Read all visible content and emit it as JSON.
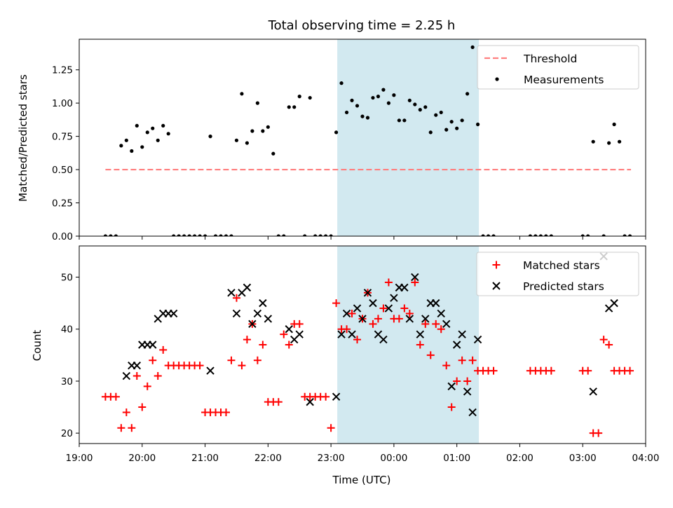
{
  "chart_data": [
    {
      "type": "scatter",
      "title": "Total observing time = 2.25 h",
      "xlabel": "",
      "ylabel": "Matched/Predicted stars",
      "xlim": [
        "19:00",
        "04:00"
      ],
      "ylim": [
        0,
        1.48
      ],
      "yticks": [
        "0.00",
        "0.25",
        "0.50",
        "0.75",
        "1.00",
        "1.25"
      ],
      "shaded_region": {
        "start": "23:06",
        "end": "01:21",
        "color": "#d2e9f0"
      },
      "legend": {
        "placement": "top-right",
        "entries": [
          "Threshold",
          "Measurements"
        ]
      },
      "series": [
        {
          "name": "Threshold",
          "style": "dashed-line",
          "color": "#ff7f7f",
          "x": [
            "19:25",
            "23:45",
            "03:46"
          ],
          "y": [
            0.5,
            0.5,
            0.5
          ]
        },
        {
          "name": "Measurements",
          "style": "dot",
          "color": "#000000",
          "x": [
            "19:25",
            "19:30",
            "19:35",
            "19:40",
            "19:45",
            "19:50",
            "19:55",
            "20:00",
            "20:05",
            "20:10",
            "20:15",
            "20:20",
            "20:25",
            "20:30",
            "20:35",
            "20:40",
            "20:45",
            "20:50",
            "20:55",
            "21:00",
            "21:05",
            "21:10",
            "21:15",
            "21:20",
            "21:25",
            "21:30",
            "21:35",
            "21:40",
            "21:45",
            "21:50",
            "21:55",
            "22:00",
            "22:05",
            "22:10",
            "22:15",
            "22:20",
            "22:25",
            "22:30",
            "22:35",
            "22:40",
            "22:45",
            "22:50",
            "22:55",
            "23:00",
            "23:05",
            "23:10",
            "23:15",
            "23:20",
            "23:25",
            "23:30",
            "23:35",
            "23:40",
            "23:45",
            "23:50",
            "23:55",
            "00:00",
            "00:05",
            "00:10",
            "00:15",
            "00:20",
            "00:25",
            "00:30",
            "00:35",
            "00:40",
            "00:45",
            "00:50",
            "00:55",
            "01:00",
            "01:05",
            "01:10",
            "01:15",
            "01:20",
            "01:25",
            "01:30",
            "01:35",
            "02:10",
            "02:15",
            "02:20",
            "02:25",
            "02:30",
            "03:00",
            "03:05",
            "03:10",
            "03:20",
            "03:25",
            "03:30",
            "03:35",
            "03:40",
            "03:45"
          ],
          "y": [
            0.0,
            0.0,
            0.0,
            0.68,
            0.72,
            0.64,
            0.83,
            0.67,
            0.78,
            0.81,
            0.72,
            0.83,
            0.77,
            0.0,
            0.0,
            0.0,
            0.0,
            0.0,
            0.0,
            0.0,
            0.75,
            0.0,
            0.0,
            0.0,
            0.0,
            0.72,
            1.07,
            0.7,
            0.79,
            1.0,
            0.79,
            0.82,
            0.62,
            0.0,
            0.0,
            0.97,
            0.97,
            1.05,
            0.0,
            1.04,
            0.0,
            0.0,
            0.0,
            0.0,
            0.78,
            1.15,
            0.93,
            1.02,
            0.98,
            0.9,
            0.89,
            1.04,
            1.05,
            1.1,
            1.0,
            1.06,
            0.87,
            0.87,
            1.02,
            0.99,
            0.95,
            0.97,
            0.78,
            0.91,
            0.93,
            0.8,
            0.86,
            0.81,
            0.87,
            1.07,
            1.42,
            0.84,
            0.0,
            0.0,
            0.0,
            0.0,
            0.0,
            0.0,
            0.0,
            0.0,
            0.0,
            0.0,
            0.71,
            0.0,
            0.7,
            0.84,
            0.71,
            0.0,
            0.0
          ]
        }
      ]
    },
    {
      "type": "scatter",
      "title": "",
      "xlabel": "Time (UTC)",
      "ylabel": "Count",
      "xlim": [
        "19:00",
        "04:00"
      ],
      "xticks": [
        "19:00",
        "20:00",
        "21:00",
        "22:00",
        "23:00",
        "00:00",
        "01:00",
        "02:00",
        "03:00",
        "04:00"
      ],
      "ylim": [
        18,
        56
      ],
      "yticks": [
        "20",
        "30",
        "40",
        "50"
      ],
      "shaded_region": {
        "start": "23:06",
        "end": "01:21",
        "color": "#d2e9f0"
      },
      "legend": {
        "placement": "top-right",
        "entries": [
          "Matched stars",
          "Predicted stars"
        ]
      },
      "series": [
        {
          "name": "Matched stars",
          "marker": "plus",
          "color": "#ff0000",
          "x": [
            "19:25",
            "19:30",
            "19:35",
            "19:40",
            "19:45",
            "19:50",
            "19:55",
            "20:00",
            "20:05",
            "20:10",
            "20:15",
            "20:20",
            "20:25",
            "20:30",
            "20:35",
            "20:40",
            "20:45",
            "20:50",
            "20:55",
            "21:00",
            "21:05",
            "21:10",
            "21:15",
            "21:20",
            "21:25",
            "21:30",
            "21:35",
            "21:40",
            "21:45",
            "21:50",
            "21:55",
            "22:00",
            "22:05",
            "22:10",
            "22:15",
            "22:20",
            "22:25",
            "22:30",
            "22:35",
            "22:40",
            "22:45",
            "22:50",
            "22:55",
            "23:00",
            "23:05",
            "23:10",
            "23:15",
            "23:20",
            "23:25",
            "23:30",
            "23:35",
            "23:40",
            "23:45",
            "23:50",
            "23:55",
            "00:00",
            "00:05",
            "00:10",
            "00:15",
            "00:20",
            "00:25",
            "00:30",
            "00:35",
            "00:40",
            "00:45",
            "00:50",
            "00:55",
            "01:00",
            "01:05",
            "01:10",
            "01:15",
            "01:20",
            "01:25",
            "01:30",
            "01:35",
            "02:10",
            "02:15",
            "02:20",
            "02:25",
            "02:30",
            "03:00",
            "03:05",
            "03:10",
            "03:15",
            "03:20",
            "03:25",
            "03:30",
            "03:35",
            "03:40",
            "03:45"
          ],
          "y": [
            27,
            27,
            27,
            21,
            24,
            21,
            31,
            25,
            29,
            34,
            31,
            36,
            33,
            33,
            33,
            33,
            33,
            33,
            33,
            24,
            24,
            24,
            24,
            24,
            34,
            46,
            33,
            38,
            41,
            34,
            37,
            26,
            26,
            26,
            39,
            37,
            41,
            41,
            27,
            27,
            27,
            27,
            27,
            21,
            45,
            40,
            40,
            43,
            38,
            42,
            47,
            41,
            42,
            44,
            49,
            42,
            42,
            44,
            43,
            49,
            37,
            41,
            35,
            41,
            40,
            33,
            25,
            30,
            34,
            30,
            34,
            32,
            32,
            32,
            32,
            32,
            32,
            32,
            32,
            32,
            32,
            32,
            20,
            20,
            38,
            37,
            32,
            32,
            32,
            32
          ]
        },
        {
          "name": "Predicted stars",
          "marker": "x",
          "color": "#000000",
          "x": [
            "19:45",
            "19:50",
            "19:55",
            "20:00",
            "20:05",
            "20:10",
            "20:15",
            "20:20",
            "20:25",
            "20:30",
            "21:05",
            "21:25",
            "21:30",
            "21:35",
            "21:40",
            "21:45",
            "21:50",
            "21:55",
            "22:00",
            "22:20",
            "22:25",
            "22:30",
            "22:40",
            "23:05",
            "23:10",
            "23:15",
            "23:20",
            "23:25",
            "23:30",
            "23:35",
            "23:40",
            "23:45",
            "23:50",
            "23:55",
            "00:00",
            "00:05",
            "00:10",
            "00:15",
            "00:20",
            "00:25",
            "00:30",
            "00:35",
            "00:40",
            "00:45",
            "00:50",
            "00:55",
            "01:00",
            "01:05",
            "01:10",
            "01:15",
            "01:20",
            "03:10",
            "03:20",
            "03:25",
            "03:30"
          ],
          "y": [
            31,
            33,
            33,
            37,
            37,
            37,
            42,
            43,
            43,
            43,
            32,
            47,
            43,
            47,
            48,
            41,
            43,
            45,
            42,
            40,
            38,
            39,
            26,
            27,
            39,
            43,
            39,
            44,
            42,
            47,
            45,
            39,
            38,
            44,
            46,
            48,
            48,
            42,
            50,
            39,
            42,
            45,
            45,
            43,
            41,
            29,
            37,
            39,
            28,
            24,
            38,
            28,
            54,
            44,
            45
          ]
        }
      ]
    }
  ]
}
